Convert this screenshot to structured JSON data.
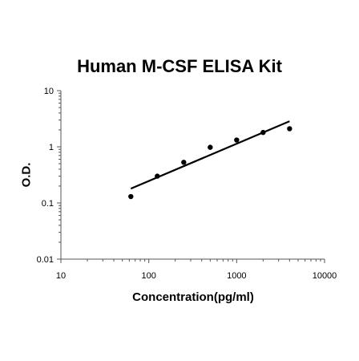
{
  "chart_data": {
    "type": "scatter",
    "title": "Human M-CSF ELISA Kit",
    "xlabel": "Concentration(pg/ml)",
    "ylabel": "O.D.",
    "x_scale": "log",
    "y_scale": "log",
    "xlim": [
      10,
      10000
    ],
    "ylim": [
      0.01,
      10
    ],
    "x_ticks": [
      "10",
      "100",
      "1000",
      "10000"
    ],
    "y_ticks": [
      "0.01",
      "0.1",
      "1",
      "10"
    ],
    "grid": false,
    "legend": "none",
    "series": [
      {
        "points": [
          {
            "x": 62.5,
            "y": 0.13
          },
          {
            "x": 125,
            "y": 0.3
          },
          {
            "x": 250,
            "y": 0.53
          },
          {
            "x": 500,
            "y": 0.98
          },
          {
            "x": 1000,
            "y": 1.32
          },
          {
            "x": 2000,
            "y": 1.8
          },
          {
            "x": 4000,
            "y": 2.1
          }
        ]
      }
    ],
    "fit_line": {
      "x": [
        62.5,
        4000
      ],
      "y": [
        0.18,
        2.85
      ]
    }
  }
}
